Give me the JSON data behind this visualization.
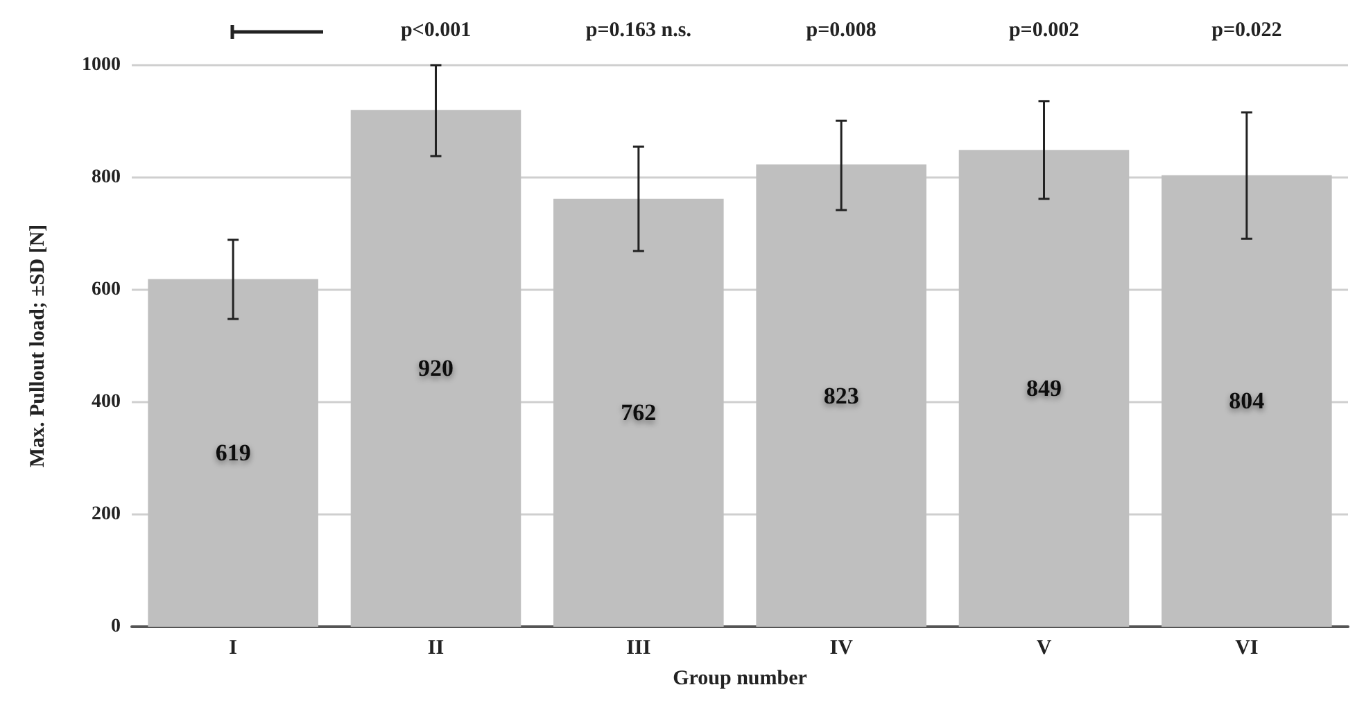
{
  "chart_data": {
    "type": "bar",
    "xlabel": "Group number",
    "ylabel": "Max. Pullout load; ±SD [N]",
    "categories": [
      "I",
      "II",
      "III",
      "IV",
      "V",
      "VI"
    ],
    "values": [
      619,
      920,
      762,
      823,
      849,
      804
    ],
    "errors": [
      [
        548,
        689
      ],
      [
        838,
        1000
      ],
      [
        669,
        855
      ],
      [
        742,
        901
      ],
      [
        762,
        936
      ],
      [
        691,
        916
      ]
    ],
    "color": "#bfbfbf",
    "ylim": [
      0,
      1000
    ],
    "yticks": [
      0,
      200,
      400,
      600,
      800,
      1000
    ],
    "grid": "y",
    "data_labels": true,
    "annotations": [
      "p<0.001",
      "p=0.163 n.s.",
      "p=0.008",
      "p=0.002",
      "p=0.022"
    ]
  }
}
